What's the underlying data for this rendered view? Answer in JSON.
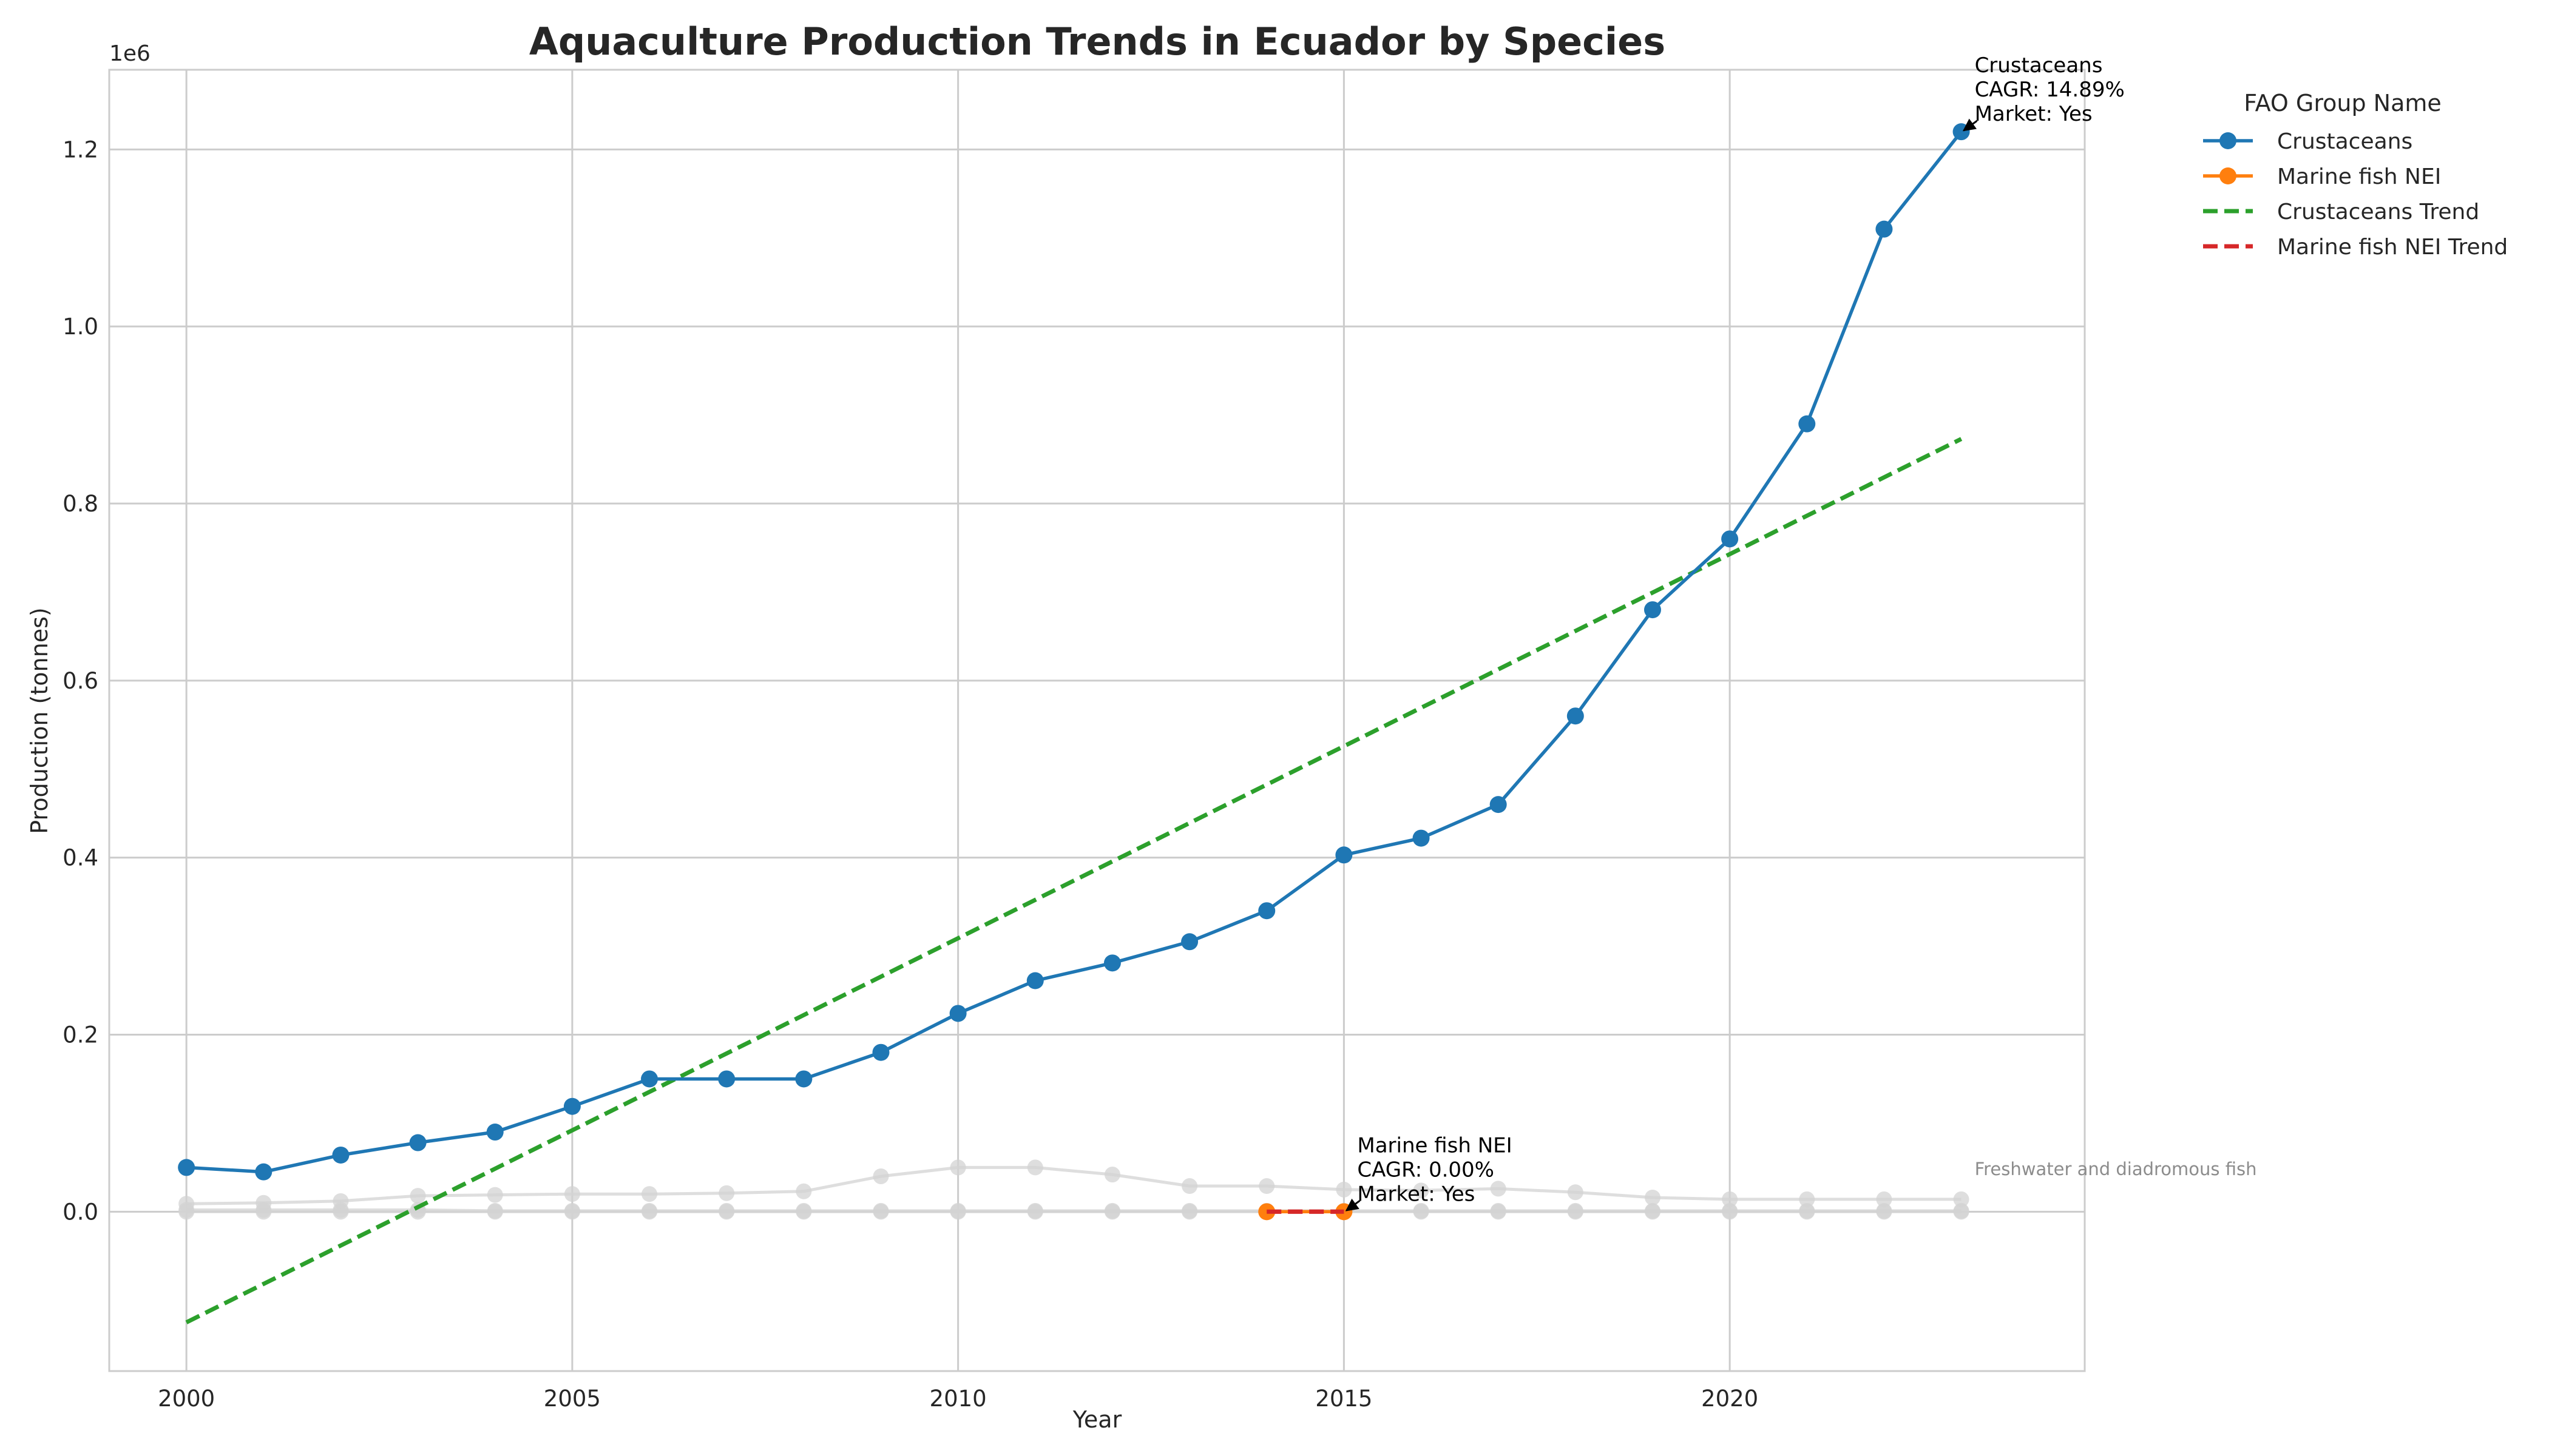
{
  "chart_data": {
    "type": "line",
    "title": "Aquaculture Production Trends in Ecuador by Species",
    "xlabel": "Year",
    "ylabel": "Production (tonnes)",
    "y_scale_label": "1e6",
    "xlim": [
      1999,
      2024.6
    ],
    "ylim": [
      -180000,
      1290000
    ],
    "x_ticks": [
      2000,
      2005,
      2010,
      2015,
      2020
    ],
    "x_tick_labels": [
      "2000",
      "2005",
      "2010",
      "2015",
      "2020"
    ],
    "y_ticks": [
      0,
      200000,
      400000,
      600000,
      800000,
      1000000,
      1200000
    ],
    "y_tick_labels": [
      "0.0",
      "0.2",
      "0.4",
      "0.6",
      "0.8",
      "1.0",
      "1.2"
    ],
    "grid": true,
    "legend": {
      "title": "FAO Group Name",
      "position": "outside-right-top",
      "entries": [
        "Crustaceans",
        "Marine fish NEI",
        "Crustaceans Trend",
        "Marine fish NEI Trend"
      ]
    },
    "series": [
      {
        "name": "Crustaceans",
        "color": "#1f77b4",
        "style": "solid-markers",
        "x": [
          2000,
          2001,
          2002,
          2003,
          2004,
          2005,
          2006,
          2007,
          2008,
          2009,
          2010,
          2011,
          2012,
          2013,
          2014,
          2015,
          2016,
          2017,
          2018,
          2019,
          2020,
          2021,
          2022,
          2023
        ],
        "values": [
          50000,
          45000,
          64000,
          78000,
          90000,
          119000,
          150000,
          150000,
          150000,
          180000,
          224000,
          261000,
          281000,
          305000,
          340000,
          403000,
          422000,
          460000,
          560000,
          680000,
          760000,
          890000,
          1110000,
          1220000
        ]
      },
      {
        "name": "Marine fish NEI",
        "color": "#ff7f0e",
        "style": "solid-markers",
        "x": [
          2014,
          2015
        ],
        "values": [
          0,
          0
        ]
      },
      {
        "name": "Crustaceans Trend",
        "color": "#2ca02c",
        "style": "dashed",
        "x": [
          2000,
          2023
        ],
        "values": [
          -125000,
          873000
        ]
      },
      {
        "name": "Marine fish NEI Trend",
        "color": "#d62728",
        "style": "dashed",
        "x": [
          2014,
          2015
        ],
        "values": [
          0,
          0
        ]
      },
      {
        "name": "Freshwater and diadromous fish",
        "color": "#d3d3d3",
        "style": "background",
        "x": [
          2000,
          2001,
          2002,
          2003,
          2004,
          2005,
          2006,
          2007,
          2008,
          2009,
          2010,
          2011,
          2012,
          2013,
          2014,
          2015,
          2016,
          2017,
          2018,
          2019,
          2020,
          2021,
          2022,
          2023
        ],
        "values": [
          9000,
          10000,
          12000,
          18000,
          19000,
          20000,
          20000,
          21000,
          23000,
          40000,
          50000,
          50000,
          42000,
          29000,
          29000,
          25000,
          24000,
          26000,
          22000,
          16000,
          14000,
          14000,
          14000,
          14000
        ]
      },
      {
        "color": "#d3d3d3",
        "style": "background",
        "x": [
          2000,
          2001,
          2002,
          2003,
          2004,
          2005,
          2006,
          2007,
          2008,
          2009,
          2010,
          2011,
          2012,
          2013,
          2014,
          2015,
          2016,
          2017,
          2018,
          2019,
          2020,
          2021,
          2022,
          2023
        ],
        "values": [
          2000,
          2000,
          2000,
          2000,
          1000,
          1000,
          1000,
          1000,
          1000,
          1000,
          1000,
          1000,
          1000,
          1000,
          1000,
          1000,
          1000,
          1000,
          1000,
          1000,
          1000,
          1000,
          1000,
          1000
        ]
      },
      {
        "color": "#d3d3d3",
        "style": "background",
        "x": [
          2000,
          2001,
          2002,
          2003,
          2004,
          2005,
          2006,
          2007,
          2008,
          2009,
          2010,
          2011,
          2012,
          2013,
          2014,
          2015,
          2016,
          2017,
          2018,
          2019,
          2020,
          2021,
          2022,
          2023
        ],
        "values": [
          0,
          0,
          0,
          0,
          0,
          0,
          0,
          0,
          0,
          0,
          0,
          0,
          0,
          0,
          0,
          0,
          0,
          0,
          0,
          0,
          0,
          0,
          0,
          0
        ]
      }
    ],
    "annotations": [
      {
        "target_series": "Crustaceans",
        "x": 2023,
        "y": 1220000,
        "lines": [
          "Crustaceans",
          "CAGR: 14.89%",
          "Market: Yes"
        ]
      },
      {
        "target_series": "Marine fish NEI",
        "x": 2015,
        "y": 0,
        "lines": [
          "Marine fish NEI",
          "CAGR: 0.00%",
          "Market: Yes"
        ]
      }
    ],
    "background_label": {
      "text": "Freshwater and diadromous fish",
      "x": 2023,
      "y": 14000
    }
  }
}
